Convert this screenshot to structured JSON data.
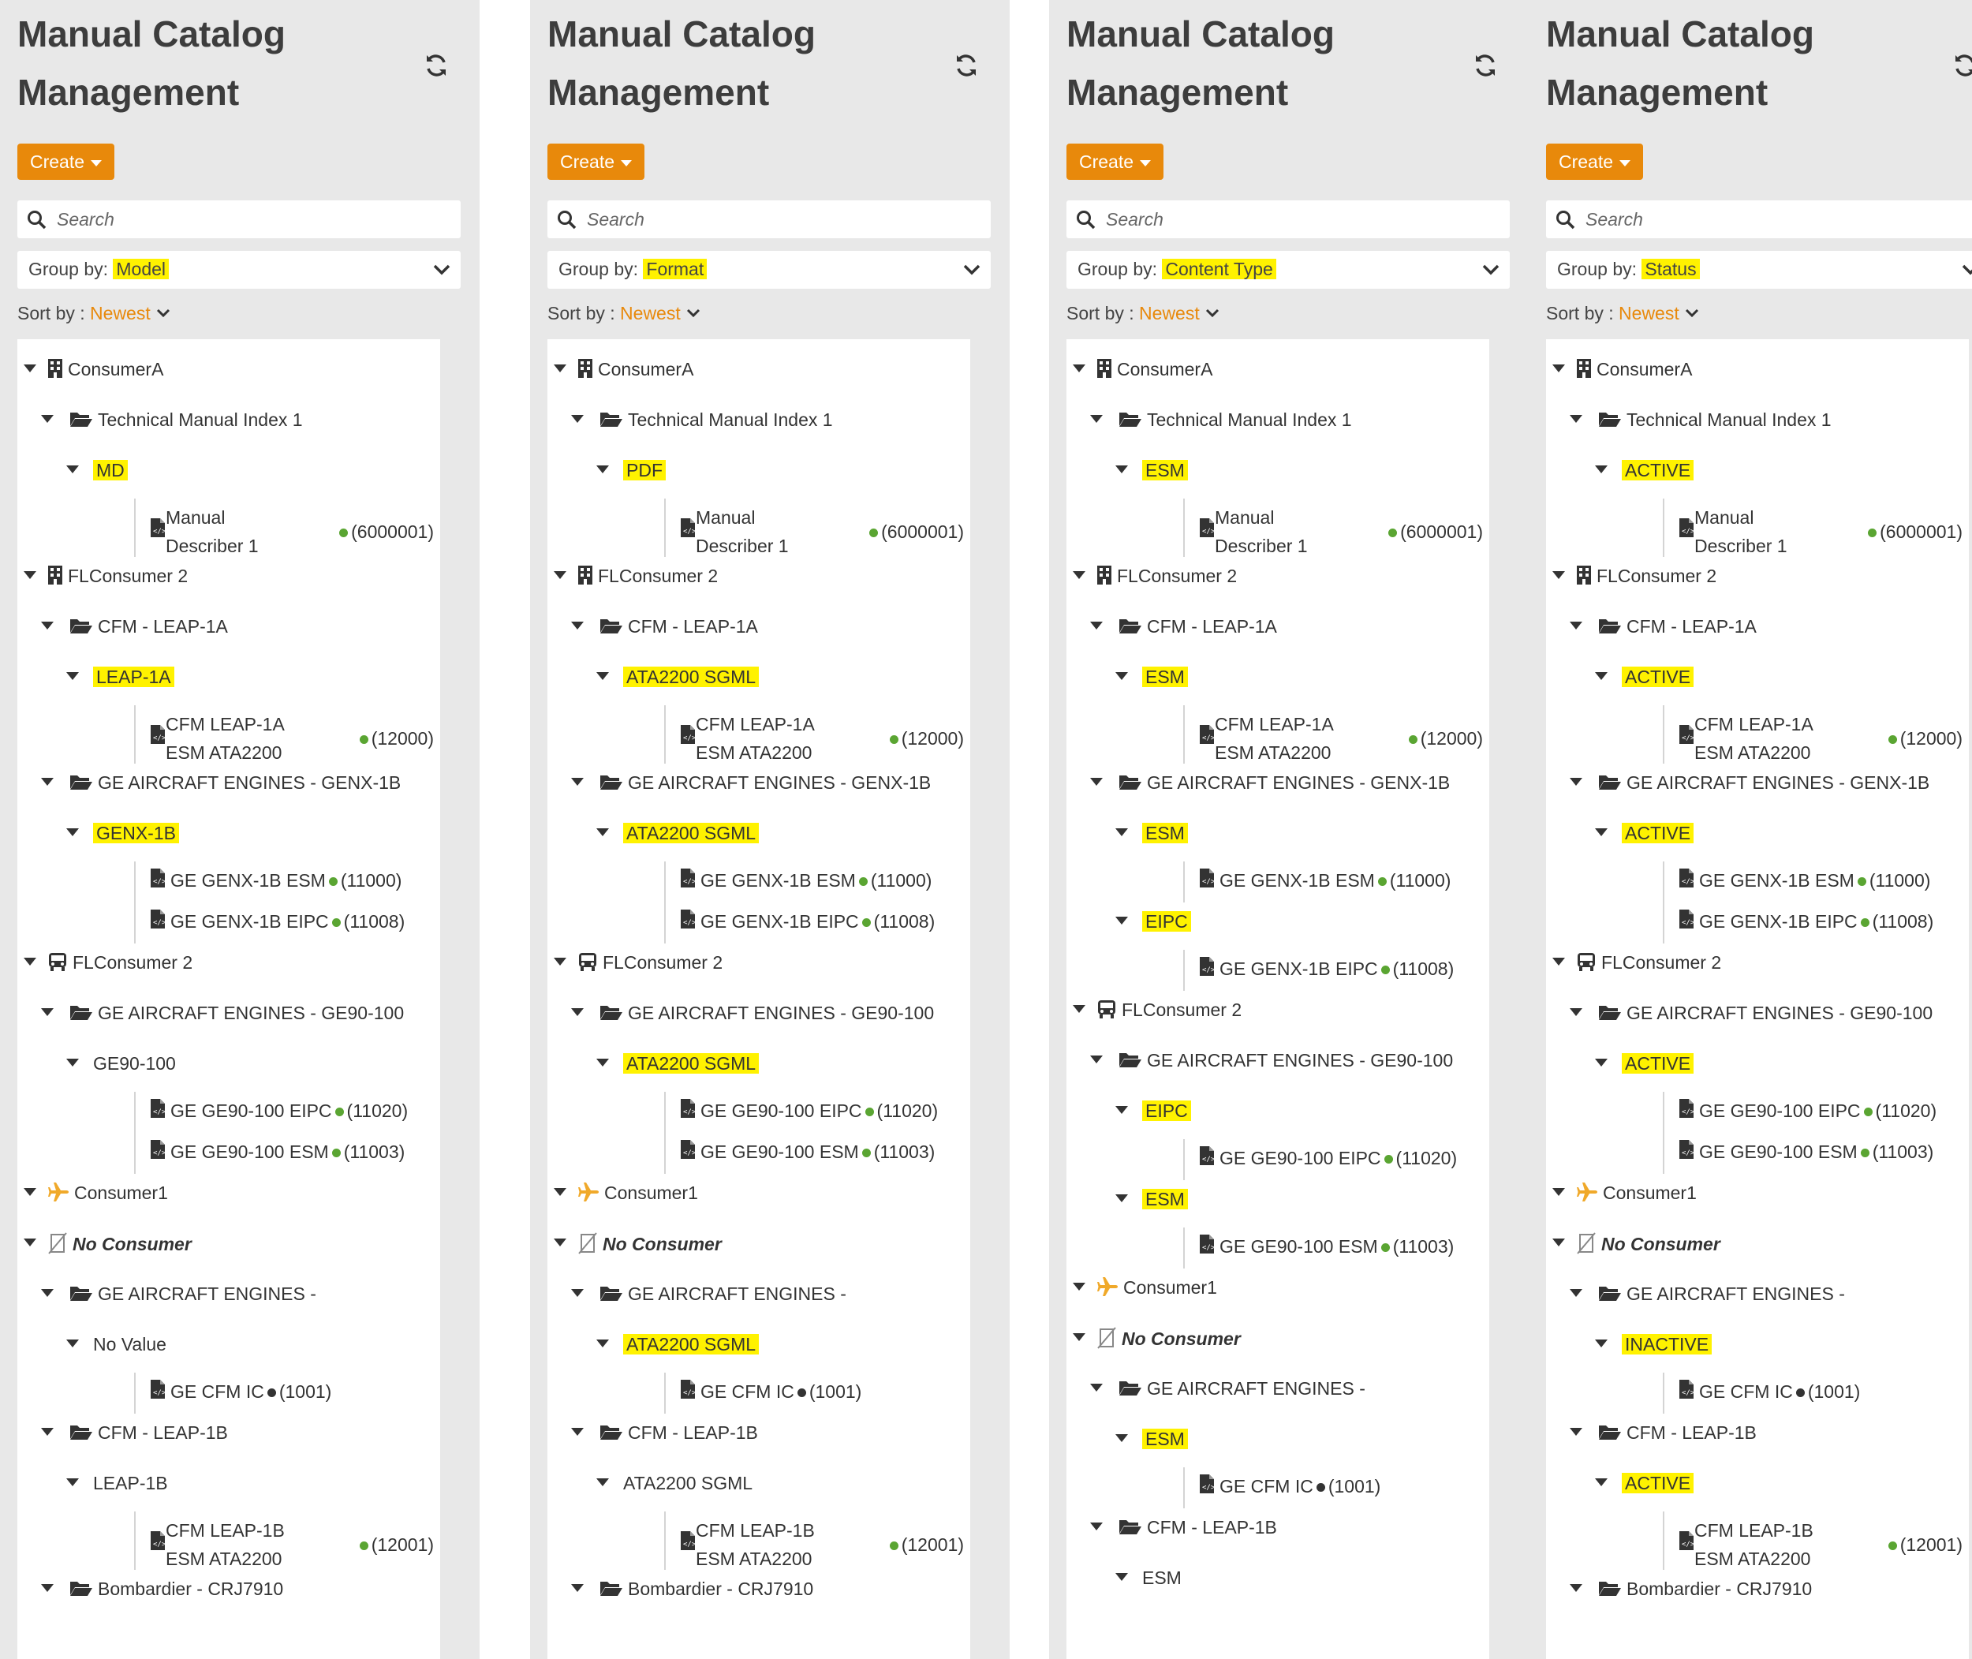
{
  "colors": {
    "accent": "#e8890b",
    "highlight": "#fff200",
    "status_green": "#5aa532",
    "status_inactive": "#333333"
  },
  "panels": [
    {
      "title": "Manual Catalog Management",
      "create_label": "Create",
      "search_placeholder": "Search",
      "group_by_label": "Group by:",
      "group_by_value": "Model",
      "sort_by_label": "Sort by :",
      "sort_by_value": "Newest",
      "tree": [
        {
          "depth": 0,
          "icon": "building-icon",
          "label": "ConsumerA"
        },
        {
          "depth": 1,
          "icon": "folder-open-icon",
          "label": "Technical Manual Index 1"
        },
        {
          "depth": 2,
          "label": "MD",
          "highlight": true
        },
        {
          "depth": 3,
          "icon": "document-code-icon",
          "label": "Manual Describer 1",
          "count": "(6000001)",
          "status": "green",
          "wrap": true
        },
        {
          "depth": 0,
          "icon": "building-icon",
          "label": "FLConsumer 2"
        },
        {
          "depth": 1,
          "icon": "folder-open-icon",
          "label": "CFM - LEAP-1A"
        },
        {
          "depth": 2,
          "label": "LEAP-1A",
          "highlight": true
        },
        {
          "depth": 3,
          "icon": "document-code-icon",
          "label": "CFM LEAP-1A ESM ATA2200",
          "count": "(12000)",
          "status": "green",
          "wrap": true
        },
        {
          "depth": 1,
          "icon": "folder-open-icon",
          "label": "GE AIRCRAFT ENGINES - GENX-1B"
        },
        {
          "depth": 2,
          "label": "GENX-1B",
          "highlight": true
        },
        {
          "depth": 3,
          "icon": "document-code-icon",
          "label": "GE GENX-1B ESM",
          "count": "(11000)",
          "status": "green"
        },
        {
          "depth": 3,
          "icon": "document-code-icon",
          "label": "GE GENX-1B EIPC",
          "count": "(11008)",
          "status": "green"
        },
        {
          "depth": 0,
          "icon": "bus-icon",
          "label": "FLConsumer 2"
        },
        {
          "depth": 1,
          "icon": "folder-open-icon",
          "label": "GE AIRCRAFT ENGINES - GE90-100"
        },
        {
          "depth": 2,
          "label": "GE90-100"
        },
        {
          "depth": 3,
          "icon": "document-code-icon",
          "label": "GE GE90-100 EIPC",
          "count": "(11020)",
          "status": "green"
        },
        {
          "depth": 3,
          "icon": "document-code-icon",
          "label": "GE GE90-100 ESM",
          "count": "(11003)",
          "status": "green"
        },
        {
          "depth": 0,
          "icon": "plane-icon",
          "label": "Consumer1"
        },
        {
          "depth": 0,
          "icon": "no-consumer-icon",
          "label": "No Consumer",
          "italic": true
        },
        {
          "depth": 1,
          "icon": "folder-open-icon",
          "label": "GE AIRCRAFT ENGINES -"
        },
        {
          "depth": 2,
          "label": "No Value"
        },
        {
          "depth": 3,
          "icon": "document-code-icon",
          "label": "GE CFM IC",
          "count": "(1001)",
          "status": "black"
        },
        {
          "depth": 1,
          "icon": "folder-open-icon",
          "label": "CFM - LEAP-1B"
        },
        {
          "depth": 2,
          "label": "LEAP-1B"
        },
        {
          "depth": 3,
          "icon": "document-code-icon",
          "label": "CFM LEAP-1B ESM ATA2200",
          "count": "(12001)",
          "status": "green",
          "wrap": true
        },
        {
          "depth": 1,
          "icon": "folder-open-icon",
          "label": "Bombardier - CRJ7910"
        }
      ]
    },
    {
      "title": "Manual Catalog Management",
      "create_label": "Create",
      "search_placeholder": "Search",
      "group_by_label": "Group by:",
      "group_by_value": "Format",
      "sort_by_label": "Sort by :",
      "sort_by_value": "Newest",
      "tree": [
        {
          "depth": 0,
          "icon": "building-icon",
          "label": "ConsumerA"
        },
        {
          "depth": 1,
          "icon": "folder-open-icon",
          "label": "Technical Manual Index 1"
        },
        {
          "depth": 2,
          "label": "PDF",
          "highlight": true
        },
        {
          "depth": 3,
          "icon": "document-code-icon",
          "label": "Manual Describer 1",
          "count": "(6000001)",
          "status": "green",
          "wrap": true
        },
        {
          "depth": 0,
          "icon": "building-icon",
          "label": "FLConsumer 2"
        },
        {
          "depth": 1,
          "icon": "folder-open-icon",
          "label": "CFM - LEAP-1A"
        },
        {
          "depth": 2,
          "label": "ATA2200 SGML",
          "highlight": true
        },
        {
          "depth": 3,
          "icon": "document-code-icon",
          "label": "CFM LEAP-1A ESM ATA2200",
          "count": "(12000)",
          "status": "green",
          "wrap": true
        },
        {
          "depth": 1,
          "icon": "folder-open-icon",
          "label": "GE AIRCRAFT ENGINES - GENX-1B"
        },
        {
          "depth": 2,
          "label": "ATA2200 SGML",
          "highlight": true
        },
        {
          "depth": 3,
          "icon": "document-code-icon",
          "label": "GE GENX-1B ESM",
          "count": "(11000)",
          "status": "green"
        },
        {
          "depth": 3,
          "icon": "document-code-icon",
          "label": "GE GENX-1B EIPC",
          "count": "(11008)",
          "status": "green"
        },
        {
          "depth": 0,
          "icon": "bus-icon",
          "label": "FLConsumer 2"
        },
        {
          "depth": 1,
          "icon": "folder-open-icon",
          "label": "GE AIRCRAFT ENGINES - GE90-100"
        },
        {
          "depth": 2,
          "label": "ATA2200 SGML",
          "highlight": true
        },
        {
          "depth": 3,
          "icon": "document-code-icon",
          "label": "GE GE90-100 EIPC",
          "count": "(11020)",
          "status": "green"
        },
        {
          "depth": 3,
          "icon": "document-code-icon",
          "label": "GE GE90-100 ESM",
          "count": "(11003)",
          "status": "green"
        },
        {
          "depth": 0,
          "icon": "plane-icon",
          "label": "Consumer1"
        },
        {
          "depth": 0,
          "icon": "no-consumer-icon",
          "label": "No Consumer",
          "italic": true
        },
        {
          "depth": 1,
          "icon": "folder-open-icon",
          "label": "GE AIRCRAFT ENGINES -"
        },
        {
          "depth": 2,
          "label": "ATA2200 SGML",
          "highlight": true
        },
        {
          "depth": 3,
          "icon": "document-code-icon",
          "label": "GE CFM IC",
          "count": "(1001)",
          "status": "black"
        },
        {
          "depth": 1,
          "icon": "folder-open-icon",
          "label": "CFM - LEAP-1B"
        },
        {
          "depth": 2,
          "label": "ATA2200 SGML"
        },
        {
          "depth": 3,
          "icon": "document-code-icon",
          "label": "CFM LEAP-1B ESM ATA2200",
          "count": "(12001)",
          "status": "green",
          "wrap": true
        },
        {
          "depth": 1,
          "icon": "folder-open-icon",
          "label": "Bombardier - CRJ7910"
        }
      ]
    },
    {
      "title": "Manual Catalog Management",
      "create_label": "Create",
      "search_placeholder": "Search",
      "group_by_label": "Group by:",
      "group_by_value": "Content Type",
      "sort_by_label": "Sort by :",
      "sort_by_value": "Newest",
      "tree": [
        {
          "depth": 0,
          "icon": "building-icon",
          "label": "ConsumerA"
        },
        {
          "depth": 1,
          "icon": "folder-open-icon",
          "label": "Technical Manual Index 1"
        },
        {
          "depth": 2,
          "label": "ESM",
          "highlight": true
        },
        {
          "depth": 3,
          "icon": "document-code-icon",
          "label": "Manual Describer 1",
          "count": "(6000001)",
          "status": "green",
          "wrap": true
        },
        {
          "depth": 0,
          "icon": "building-icon",
          "label": "FLConsumer 2"
        },
        {
          "depth": 1,
          "icon": "folder-open-icon",
          "label": "CFM - LEAP-1A"
        },
        {
          "depth": 2,
          "label": "ESM",
          "highlight": true
        },
        {
          "depth": 3,
          "icon": "document-code-icon",
          "label": "CFM LEAP-1A ESM ATA2200",
          "count": "(12000)",
          "status": "green",
          "wrap": true
        },
        {
          "depth": 1,
          "icon": "folder-open-icon",
          "label": "GE AIRCRAFT ENGINES - GENX-1B"
        },
        {
          "depth": 2,
          "label": "ESM",
          "highlight": true
        },
        {
          "depth": 3,
          "icon": "document-code-icon",
          "label": "GE GENX-1B ESM",
          "count": "(11000)",
          "status": "green"
        },
        {
          "depth": 2,
          "label": "EIPC",
          "highlight": true
        },
        {
          "depth": 3,
          "icon": "document-code-icon",
          "label": "GE GENX-1B EIPC",
          "count": "(11008)",
          "status": "green"
        },
        {
          "depth": 0,
          "icon": "bus-icon",
          "label": "FLConsumer 2"
        },
        {
          "depth": 1,
          "icon": "folder-open-icon",
          "label": "GE AIRCRAFT ENGINES - GE90-100"
        },
        {
          "depth": 2,
          "label": "EIPC",
          "highlight": true
        },
        {
          "depth": 3,
          "icon": "document-code-icon",
          "label": "GE GE90-100 EIPC",
          "count": "(11020)",
          "status": "green"
        },
        {
          "depth": 2,
          "label": "ESM",
          "highlight": true
        },
        {
          "depth": 3,
          "icon": "document-code-icon",
          "label": "GE GE90-100 ESM",
          "count": "(11003)",
          "status": "green"
        },
        {
          "depth": 0,
          "icon": "plane-icon",
          "label": "Consumer1"
        },
        {
          "depth": 0,
          "icon": "no-consumer-icon",
          "label": "No Consumer",
          "italic": true
        },
        {
          "depth": 1,
          "icon": "folder-open-icon",
          "label": "GE AIRCRAFT ENGINES -"
        },
        {
          "depth": 2,
          "label": "ESM",
          "highlight": true
        },
        {
          "depth": 3,
          "icon": "document-code-icon",
          "label": "GE CFM IC",
          "count": "(1001)",
          "status": "black"
        },
        {
          "depth": 1,
          "icon": "folder-open-icon",
          "label": "CFM - LEAP-1B"
        },
        {
          "depth": 2,
          "label": "ESM"
        }
      ]
    },
    {
      "title": "Manual Catalog Management",
      "create_label": "Create",
      "search_placeholder": "Search",
      "group_by_label": "Group by:",
      "group_by_value": "Status",
      "sort_by_label": "Sort by :",
      "sort_by_value": "Newest",
      "tree": [
        {
          "depth": 0,
          "icon": "building-icon",
          "label": "ConsumerA"
        },
        {
          "depth": 1,
          "icon": "folder-open-icon",
          "label": "Technical Manual Index 1"
        },
        {
          "depth": 2,
          "label": "ACTIVE",
          "highlight": true
        },
        {
          "depth": 3,
          "icon": "document-code-icon",
          "label": "Manual Describer 1",
          "count": "(6000001)",
          "status": "green",
          "wrap": true
        },
        {
          "depth": 0,
          "icon": "building-icon",
          "label": "FLConsumer 2"
        },
        {
          "depth": 1,
          "icon": "folder-open-icon",
          "label": "CFM - LEAP-1A"
        },
        {
          "depth": 2,
          "label": "ACTIVE",
          "highlight": true
        },
        {
          "depth": 3,
          "icon": "document-code-icon",
          "label": "CFM LEAP-1A ESM ATA2200",
          "count": "(12000)",
          "status": "green",
          "wrap": true
        },
        {
          "depth": 1,
          "icon": "folder-open-icon",
          "label": "GE AIRCRAFT ENGINES - GENX-1B"
        },
        {
          "depth": 2,
          "label": "ACTIVE",
          "highlight": true
        },
        {
          "depth": 3,
          "icon": "document-code-icon",
          "label": "GE GENX-1B ESM",
          "count": "(11000)",
          "status": "green"
        },
        {
          "depth": 3,
          "icon": "document-code-icon",
          "label": "GE GENX-1B EIPC",
          "count": "(11008)",
          "status": "green"
        },
        {
          "depth": 0,
          "icon": "bus-icon",
          "label": "FLConsumer 2"
        },
        {
          "depth": 1,
          "icon": "folder-open-icon",
          "label": "GE AIRCRAFT ENGINES - GE90-100"
        },
        {
          "depth": 2,
          "label": "ACTIVE",
          "highlight": true
        },
        {
          "depth": 3,
          "icon": "document-code-icon",
          "label": "GE GE90-100 EIPC",
          "count": "(11020)",
          "status": "green"
        },
        {
          "depth": 3,
          "icon": "document-code-icon",
          "label": "GE GE90-100 ESM",
          "count": "(11003)",
          "status": "green"
        },
        {
          "depth": 0,
          "icon": "plane-icon",
          "label": "Consumer1"
        },
        {
          "depth": 0,
          "icon": "no-consumer-icon",
          "label": "No Consumer",
          "italic": true
        },
        {
          "depth": 1,
          "icon": "folder-open-icon",
          "label": "GE AIRCRAFT ENGINES -"
        },
        {
          "depth": 2,
          "label": "INACTIVE",
          "highlight": true
        },
        {
          "depth": 3,
          "icon": "document-code-icon",
          "label": "GE CFM IC",
          "count": "(1001)",
          "status": "black"
        },
        {
          "depth": 1,
          "icon": "folder-open-icon",
          "label": "CFM - LEAP-1B"
        },
        {
          "depth": 2,
          "label": "ACTIVE",
          "highlight": true
        },
        {
          "depth": 3,
          "icon": "document-code-icon",
          "label": "CFM LEAP-1B ESM ATA2200",
          "count": "(12001)",
          "status": "green",
          "wrap": true
        },
        {
          "depth": 1,
          "icon": "folder-open-icon",
          "label": "Bombardier - CRJ7910"
        }
      ]
    }
  ]
}
